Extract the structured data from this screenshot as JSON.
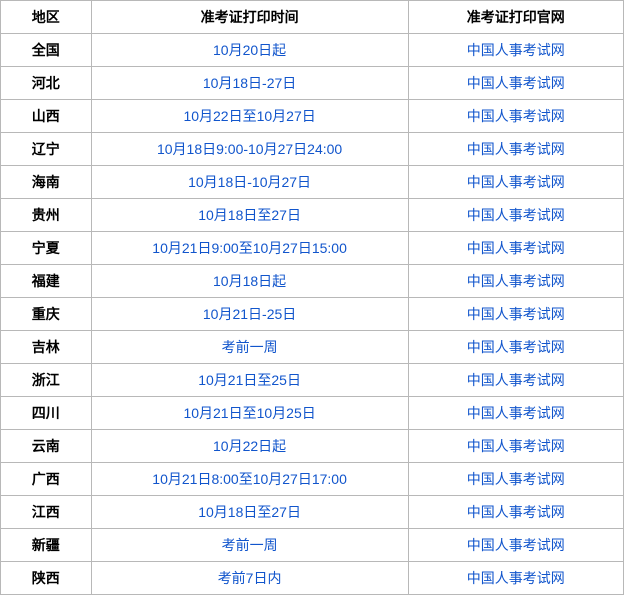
{
  "columns": [
    "地区",
    "准考证打印时间",
    "准考证打印官网"
  ],
  "col_widths": [
    "90px",
    "315px",
    "214px"
  ],
  "header_color": "#000000",
  "link_color": "#1155cc",
  "border_color": "#b8b8b8",
  "rows": [
    {
      "region": "全国",
      "time": "10月20日起",
      "site": "中国人事考试网"
    },
    {
      "region": "河北",
      "time": "10月18日-27日",
      "site": "中国人事考试网"
    },
    {
      "region": "山西",
      "time": "10月22日至10月27日",
      "site": "中国人事考试网"
    },
    {
      "region": "辽宁",
      "time": "10月18日9:00-10月27日24:00",
      "site": "中国人事考试网"
    },
    {
      "region": "海南",
      "time": "10月18日-10月27日",
      "site": "中国人事考试网"
    },
    {
      "region": "贵州",
      "time": "10月18日至27日",
      "site": "中国人事考试网"
    },
    {
      "region": "宁夏",
      "time": "10月21日9:00至10月27日15:00",
      "site": "中国人事考试网"
    },
    {
      "region": "福建",
      "time": "10月18日起",
      "site": "中国人事考试网"
    },
    {
      "region": "重庆",
      "time": "10月21日-25日",
      "site": "中国人事考试网"
    },
    {
      "region": "吉林",
      "time": "考前一周",
      "site": "中国人事考试网"
    },
    {
      "region": "浙江",
      "time": "10月21日至25日",
      "site": "中国人事考试网"
    },
    {
      "region": "四川",
      "time": "10月21日至10月25日",
      "site": "中国人事考试网"
    },
    {
      "region": "云南",
      "time": "10月22日起",
      "site": "中国人事考试网"
    },
    {
      "region": "广西",
      "time": "10月21日8:00至10月27日17:00",
      "site": "中国人事考试网"
    },
    {
      "region": "江西",
      "time": "10月18日至27日",
      "site": "中国人事考试网"
    },
    {
      "region": "新疆",
      "time": "考前一周",
      "site": "中国人事考试网"
    },
    {
      "region": "陕西",
      "time": "考前7日内",
      "site": "中国人事考试网"
    }
  ]
}
